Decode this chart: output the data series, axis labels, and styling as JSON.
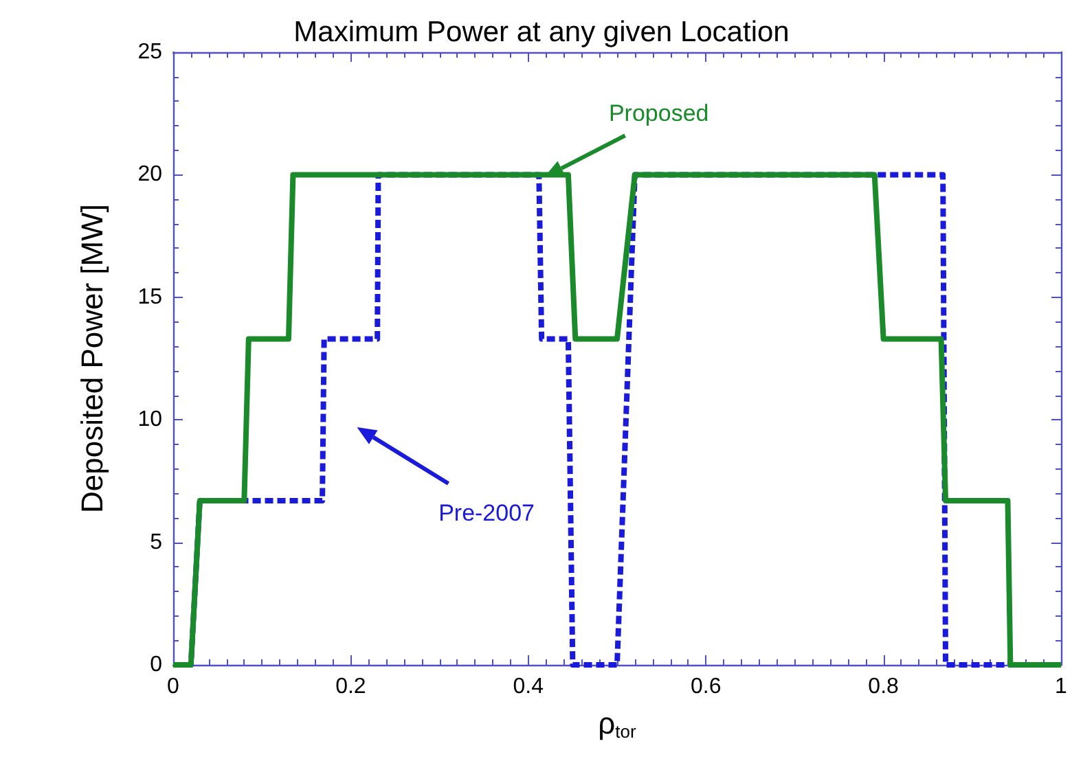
{
  "chart_data": {
    "type": "line",
    "title": "Maximum Power at any given Location",
    "xlabel": "ρ$_{tor}$",
    "ylabel": "Deposited Power [MW]",
    "xlim": [
      0,
      1
    ],
    "xticks": [
      0,
      0.2,
      0.4,
      0.6,
      0.8,
      1
    ],
    "ylim": [
      0,
      25
    ],
    "yticks": [
      0,
      5,
      10,
      15,
      20,
      25
    ],
    "grid": false,
    "legend": false,
    "marker": "none",
    "series": [
      {
        "name": "Proposed",
        "color": "#1a8a2a",
        "line_style": "solid",
        "x": [
          0,
          0.02,
          0.03,
          0.08,
          0.085,
          0.13,
          0.135,
          0.445,
          0.453,
          0.5,
          0.52,
          0.79,
          0.8,
          0.865,
          0.87,
          0.94,
          0.943,
          1
        ],
        "values": [
          0,
          0,
          6.7,
          6.7,
          13.3,
          13.3,
          20,
          20,
          13.3,
          13.3,
          20,
          20,
          13.3,
          13.3,
          6.7,
          6.7,
          0,
          0
        ]
      },
      {
        "name": "Pre-2007",
        "color": "#1a1adb",
        "line_style": "dashed",
        "x": [
          0,
          0.02,
          0.03,
          0.168,
          0.17,
          0.23,
          0.231,
          0.412,
          0.415,
          0.445,
          0.45,
          0.5,
          0.52,
          0.867,
          0.87,
          1
        ],
        "values": [
          0,
          0,
          6.7,
          6.7,
          13.3,
          13.3,
          20,
          20,
          13.3,
          13.3,
          0,
          0,
          20,
          20,
          0,
          0
        ]
      }
    ]
  }
}
